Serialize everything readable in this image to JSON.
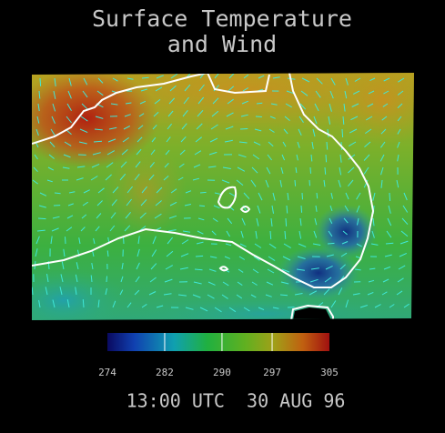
{
  "title": [
    "Surface Temperature",
    "and Wind"
  ],
  "colorbar": {
    "ticks": [
      274,
      282,
      290,
      297,
      305
    ]
  },
  "timestamp": "13:00 UTC  30 AUG 96"
}
